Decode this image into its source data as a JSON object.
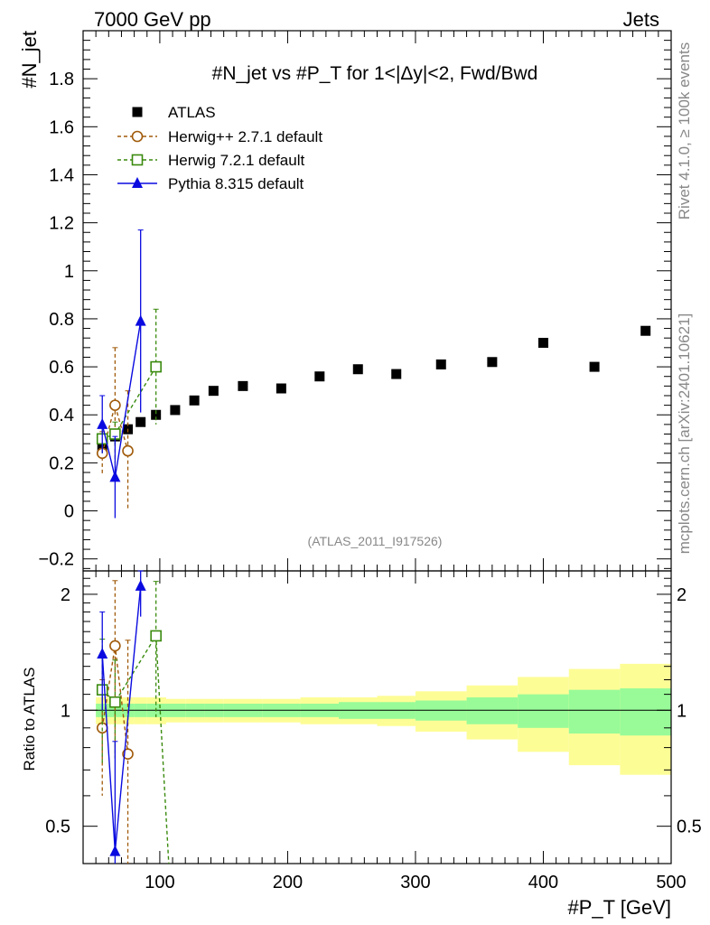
{
  "header": {
    "left": "7000 GeV pp",
    "right": "Jets"
  },
  "side_labels": {
    "rivet": "Rivet 4.1.0, ≥ 100k events",
    "mcplots": "mcplots.cern.ch [arXiv:2401.10621]"
  },
  "chart_data": {
    "type": "scatter",
    "title": "#N_jet vs #P_T for 1<|Δy|<2, Fwd/Bwd",
    "analysis_id": "(ATLAS_2011_I917526)",
    "ylabel": "#N_jet",
    "ratio_ylabel": "Ratio to ATLAS",
    "xlabel": "#P_T [GeV]",
    "xlim": [
      40,
      500
    ],
    "ylim": [
      -0.25,
      2.0
    ],
    "ratio_ylim": [
      0.4,
      2.3
    ],
    "x_ticks": [
      100,
      200,
      300,
      400,
      500
    ],
    "x_tick_labels": [
      "100",
      "200",
      "300",
      "400",
      "500"
    ],
    "y_ticks": [
      -0.2,
      0,
      0.2,
      0.4,
      0.6,
      0.8,
      1,
      1.2,
      1.4,
      1.6,
      1.8
    ],
    "y_tick_labels": [
      "−0.2",
      "0",
      "0.2",
      "0.4",
      "0.6",
      "0.8",
      "1",
      "1.2",
      "1.4",
      "1.6",
      "1.8"
    ],
    "ratio_ticks": [
      0.5,
      1,
      2
    ],
    "ratio_tick_labels": [
      "0.5",
      "1",
      "2"
    ],
    "legend": [
      "ATLAS",
      "Herwig++ 2.7.1 default",
      "Herwig 7.2.1 default",
      "Pythia 8.315 default"
    ],
    "series": [
      {
        "name": "ATLAS",
        "color": "#000000",
        "marker": "square-filled",
        "x": [
          55,
          65,
          75,
          85,
          97,
          112,
          127,
          142,
          165,
          195,
          225,
          255,
          285,
          320,
          360,
          400,
          440,
          480
        ],
        "y": [
          0.27,
          0.31,
          0.34,
          0.37,
          0.4,
          0.42,
          0.46,
          0.5,
          0.52,
          0.51,
          0.56,
          0.59,
          0.57,
          0.61,
          0.62,
          0.7,
          0.6,
          0.75
        ],
        "band_inner": [
          0.04,
          0.04,
          0.04,
          0.04,
          0.04,
          0.04,
          0.04,
          0.04,
          0.04,
          0.04,
          0.04,
          0.05,
          0.05,
          0.06,
          0.08,
          0.1,
          0.13,
          0.14
        ],
        "band_outer": [
          0.08,
          0.08,
          0.08,
          0.08,
          0.08,
          0.07,
          0.07,
          0.07,
          0.07,
          0.07,
          0.08,
          0.08,
          0.09,
          0.12,
          0.16,
          0.22,
          0.28,
          0.32
        ],
        "bin_edges": [
          50,
          60,
          70,
          80,
          90,
          105,
          120,
          135,
          150,
          180,
          210,
          240,
          270,
          300,
          340,
          380,
          420,
          460,
          500
        ]
      },
      {
        "name": "Herwig++ 2.7.1 default",
        "color": "#a05a0a",
        "marker": "circle-open",
        "line": "dashed",
        "x": [
          55,
          65,
          75
        ],
        "y": [
          0.24,
          0.44,
          0.25
        ],
        "yerr": [
          0.09,
          0.24,
          0.25
        ],
        "ratio": [
          0.9,
          1.47,
          0.77
        ],
        "ratio_err": [
          0.3,
          0.7,
          0.75
        ]
      },
      {
        "name": "Herwig 7.2.1 default",
        "color": "#3a8a0e",
        "marker": "square-open",
        "line": "dashed",
        "x": [
          55,
          65,
          97
        ],
        "y": [
          0.3,
          0.32,
          0.6
        ],
        "yerr": [
          0.06,
          0.05,
          0.24
        ],
        "ratio": [
          1.13,
          1.05,
          1.56
        ],
        "ratio_err": [
          0.4,
          0.3,
          0.6
        ],
        "ratio_tail_x": 107,
        "ratio_tail_y": 0.35
      },
      {
        "name": "Pythia 8.315 default",
        "color": "#0a0ae0",
        "marker": "triangle-filled",
        "line": "solid",
        "x": [
          55,
          65,
          85
        ],
        "y": [
          0.36,
          0.14,
          0.79
        ],
        "yerr": [
          0.12,
          0.17,
          0.38
        ],
        "ratio": [
          1.4,
          0.43,
          2.1
        ],
        "ratio_err": [
          0.4,
          0.4,
          0.35
        ]
      }
    ]
  }
}
